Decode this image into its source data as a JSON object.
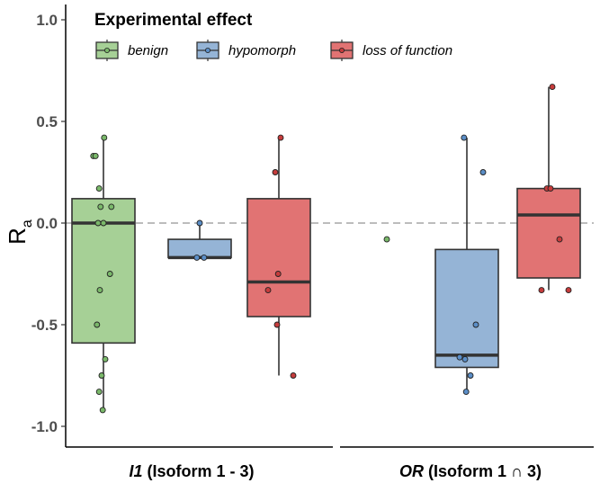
{
  "chart_data": {
    "type": "boxplot",
    "ylabel": "R",
    "ylabel_subscript": "a",
    "ylim": [
      -1.1,
      1.1
    ],
    "yticks": [
      {
        "value": 1.0,
        "label": "1.0"
      },
      {
        "value": 0.5,
        "label": "0.5"
      },
      {
        "value": 0.0,
        "label": "0.0"
      },
      {
        "value": -0.5,
        "label": "-0.5"
      },
      {
        "value": -1.0,
        "label": "-1.0"
      }
    ],
    "reference_line": 0.0,
    "legend": {
      "title": "Experimental effect",
      "placement": "top-left",
      "entries": [
        {
          "name": "benign",
          "fill": "#a6d096",
          "point": "#7ab86a"
        },
        {
          "name": "hypomorph",
          "fill": "#95b4d6",
          "point": "#5b8ec7"
        },
        {
          "name": "loss of function",
          "fill": "#e17373",
          "point": "#c63c3c"
        }
      ]
    },
    "groups": [
      {
        "label_bold_italic": "I1",
        "label_rest": " (Isoform 1 - 3)",
        "series": [
          {
            "name": "benign",
            "box": {
              "q1": -0.59,
              "median": 0.0,
              "q3": 0.12,
              "whisker_low": -0.92,
              "whisker_high": 0.42
            },
            "points": [
              [
                -0.28,
                0.33
              ],
              [
                -0.22,
                0.33
              ],
              [
                0.02,
                0.42
              ],
              [
                -0.12,
                0.17
              ],
              [
                -0.08,
                0.08
              ],
              [
                -0.15,
                0.0
              ],
              [
                0.0,
                0.0
              ],
              [
                0.22,
                0.08
              ],
              [
                -0.1,
                -0.33
              ],
              [
                0.18,
                -0.25
              ],
              [
                -0.18,
                -0.5
              ],
              [
                0.05,
                -0.67
              ],
              [
                -0.05,
                -0.75
              ],
              [
                -0.12,
                -0.83
              ],
              [
                -0.02,
                -0.92
              ]
            ]
          },
          {
            "name": "hypomorph",
            "box": {
              "q1": -0.17,
              "median": -0.17,
              "q3": -0.08,
              "whisker_low": -0.17,
              "whisker_high": 0.0
            },
            "points": [
              [
                0.0,
                0.0
              ],
              [
                -0.08,
                -0.17
              ],
              [
                0.12,
                -0.17
              ]
            ]
          },
          {
            "name": "loss of function",
            "box": {
              "q1": -0.46,
              "median": -0.29,
              "q3": 0.12,
              "whisker_low": -0.75,
              "whisker_high": 0.42
            },
            "points": [
              [
                0.05,
                0.42
              ],
              [
                -0.1,
                0.25
              ],
              [
                -0.3,
                -0.33
              ],
              [
                -0.02,
                -0.25
              ],
              [
                -0.05,
                -0.5
              ],
              [
                0.4,
                -0.75
              ]
            ]
          }
        ]
      },
      {
        "label_bold_italic": "OR",
        "label_rest": " (Isoform 1 ∩ 3)",
        "series": [
          {
            "name": "benign",
            "box": null,
            "points": [
              [
                0.0,
                -0.08
              ]
            ]
          },
          {
            "name": "hypomorph",
            "box": {
              "q1": -0.71,
              "median": -0.65,
              "q3": -0.13,
              "whisker_low": -0.83,
              "whisker_high": 0.42
            },
            "points": [
              [
                -0.08,
                0.42
              ],
              [
                0.45,
                0.25
              ],
              [
                0.25,
                -0.5
              ],
              [
                -0.2,
                -0.66
              ],
              [
                -0.05,
                -0.67
              ],
              [
                0.1,
                -0.75
              ],
              [
                -0.02,
                -0.83
              ]
            ]
          },
          {
            "name": "loss of function",
            "box": {
              "q1": -0.27,
              "median": 0.04,
              "q3": 0.17,
              "whisker_low": -0.33,
              "whisker_high": 0.67
            },
            "points": [
              [
                0.1,
                0.67
              ],
              [
                -0.05,
                0.17
              ],
              [
                0.05,
                0.17
              ],
              [
                0.3,
                -0.08
              ],
              [
                -0.2,
                -0.33
              ],
              [
                0.55,
                -0.33
              ]
            ]
          }
        ]
      }
    ]
  }
}
